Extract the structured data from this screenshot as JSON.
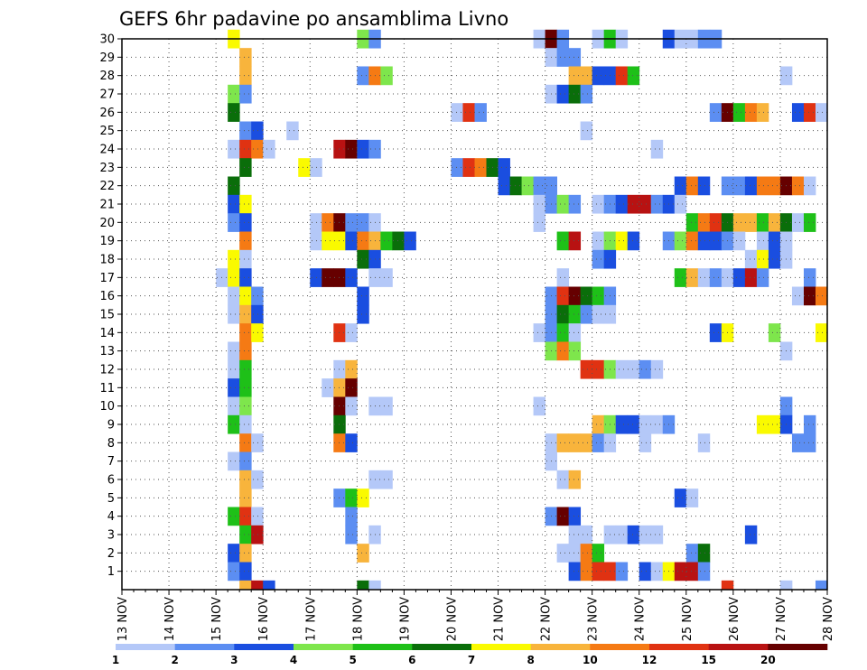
{
  "chart_data": {
    "type": "heatmap",
    "title": "GEFS 6hr padavine po ansamblima Livno",
    "ensemble_members": [
      "1",
      "2",
      "3",
      "4",
      "5",
      "6",
      "7",
      "8",
      "9",
      "10",
      "11",
      "12",
      "13",
      "14",
      "15",
      "16",
      "17",
      "18",
      "19",
      "20",
      "21",
      "22",
      "23",
      "24",
      "25",
      "26",
      "27",
      "28",
      "29",
      "30"
    ],
    "x_ticks": [
      "13 NOV",
      "14 NOV",
      "15 NOV",
      "16 NOV",
      "17 NOV",
      "18 NOV",
      "19 NOV",
      "20 NOV",
      "21 NOV",
      "22 NOV",
      "23 NOV",
      "24 NOV",
      "25 NOV",
      "26 NOV",
      "27 NOV",
      "28 NOV"
    ],
    "time_step_hours": 6,
    "legend": {
      "placement": "bottom",
      "colors": [
        "#b4c8f8",
        "#5c8ef2",
        "#1a4ee0",
        "#7ee64c",
        "#1ec018",
        "#0a6e0a",
        "#fafa00",
        "#f8b43c",
        "#f57a14",
        "#e03212",
        "#b81212",
        "#660000"
      ],
      "labels": [
        "1",
        "2",
        "3",
        "4",
        "5",
        "6",
        "7",
        "8",
        "10",
        "12",
        "15",
        "20"
      ]
    },
    "note_units": "level index 1-12 refers to legend color class",
    "cells": [
      [
        30,
        15.25,
        7
      ],
      [
        30,
        18.0,
        4
      ],
      [
        30,
        18.25,
        2
      ],
      [
        30,
        21.75,
        1
      ],
      [
        30,
        22.0,
        12
      ],
      [
        30,
        22.25,
        2
      ],
      [
        30,
        23.0,
        1
      ],
      [
        30,
        23.25,
        5
      ],
      [
        30,
        23.5,
        1
      ],
      [
        30,
        24.5,
        3
      ],
      [
        30,
        24.75,
        1
      ],
      [
        30,
        25.0,
        1
      ],
      [
        30,
        25.25,
        2
      ],
      [
        30,
        25.5,
        2
      ],
      [
        29,
        15.5,
        8
      ],
      [
        29,
        22.0,
        1
      ],
      [
        29,
        22.25,
        2
      ],
      [
        29,
        22.5,
        2
      ],
      [
        28,
        15.5,
        8
      ],
      [
        28,
        18.0,
        2
      ],
      [
        28,
        18.25,
        9
      ],
      [
        28,
        18.5,
        4
      ],
      [
        28,
        22.5,
        8
      ],
      [
        28,
        22.75,
        8
      ],
      [
        28,
        23.0,
        3
      ],
      [
        28,
        23.25,
        3
      ],
      [
        28,
        23.5,
        10
      ],
      [
        28,
        23.75,
        5
      ],
      [
        28,
        27.0,
        1
      ],
      [
        27,
        15.25,
        4
      ],
      [
        27,
        15.5,
        2
      ],
      [
        27,
        22.0,
        1
      ],
      [
        27,
        22.25,
        3
      ],
      [
        27,
        22.5,
        6
      ],
      [
        27,
        22.75,
        2
      ],
      [
        26,
        15.25,
        6
      ],
      [
        26,
        20.0,
        1
      ],
      [
        26,
        20.25,
        10
      ],
      [
        26,
        20.5,
        2
      ],
      [
        26,
        25.5,
        2
      ],
      [
        26,
        25.75,
        12
      ],
      [
        26,
        26.0,
        5
      ],
      [
        26,
        26.25,
        9
      ],
      [
        26,
        26.5,
        8
      ],
      [
        26,
        27.25,
        3
      ],
      [
        26,
        27.5,
        10
      ],
      [
        26,
        27.75,
        1
      ],
      [
        25,
        15.5,
        2
      ],
      [
        25,
        15.75,
        3
      ],
      [
        25,
        16.5,
        1
      ],
      [
        25,
        22.75,
        1
      ],
      [
        24,
        15.25,
        1
      ],
      [
        24,
        15.5,
        10
      ],
      [
        24,
        15.75,
        9
      ],
      [
        24,
        16.0,
        1
      ],
      [
        24,
        17.5,
        11
      ],
      [
        24,
        17.75,
        12
      ],
      [
        24,
        18.0,
        3
      ],
      [
        24,
        18.25,
        2
      ],
      [
        24,
        24.25,
        1
      ],
      [
        23,
        15.5,
        6
      ],
      [
        23,
        16.75,
        7
      ],
      [
        23,
        17.0,
        1
      ],
      [
        23,
        20.0,
        2
      ],
      [
        23,
        20.25,
        10
      ],
      [
        23,
        20.5,
        9
      ],
      [
        23,
        20.75,
        6
      ],
      [
        23,
        21.0,
        3
      ],
      [
        22,
        15.25,
        6
      ],
      [
        22,
        21.0,
        3
      ],
      [
        22,
        21.25,
        6
      ],
      [
        22,
        21.5,
        4
      ],
      [
        22,
        21.75,
        2
      ],
      [
        22,
        22.0,
        2
      ],
      [
        22,
        24.75,
        3
      ],
      [
        22,
        25.0,
        9
      ],
      [
        22,
        25.25,
        3
      ],
      [
        22,
        25.75,
        2
      ],
      [
        22,
        26.0,
        2
      ],
      [
        22,
        26.25,
        3
      ],
      [
        22,
        26.5,
        9
      ],
      [
        22,
        26.75,
        9
      ],
      [
        22,
        27.0,
        12
      ],
      [
        22,
        27.25,
        9
      ],
      [
        22,
        27.5,
        1
      ],
      [
        21,
        15.25,
        3
      ],
      [
        21,
        15.5,
        7
      ],
      [
        21,
        21.75,
        1
      ],
      [
        21,
        22.0,
        2
      ],
      [
        21,
        22.25,
        4
      ],
      [
        21,
        22.5,
        2
      ],
      [
        21,
        23.0,
        1
      ],
      [
        21,
        23.25,
        2
      ],
      [
        21,
        23.5,
        3
      ],
      [
        21,
        23.75,
        11
      ],
      [
        21,
        24.0,
        11
      ],
      [
        21,
        24.25,
        2
      ],
      [
        21,
        24.5,
        3
      ],
      [
        21,
        24.75,
        1
      ],
      [
        20,
        15.25,
        2
      ],
      [
        20,
        15.5,
        3
      ],
      [
        20,
        17.0,
        1
      ],
      [
        20,
        17.25,
        9
      ],
      [
        20,
        17.5,
        12
      ],
      [
        20,
        17.75,
        2
      ],
      [
        20,
        18.0,
        2
      ],
      [
        20,
        18.25,
        1
      ],
      [
        20,
        21.75,
        1
      ],
      [
        20,
        25.0,
        5
      ],
      [
        20,
        25.25,
        9
      ],
      [
        20,
        25.5,
        10
      ],
      [
        20,
        25.75,
        6
      ],
      [
        20,
        26.0,
        8
      ],
      [
        20,
        26.25,
        8
      ],
      [
        20,
        26.5,
        5
      ],
      [
        20,
        26.75,
        8
      ],
      [
        20,
        27.0,
        6
      ],
      [
        20,
        27.25,
        1
      ],
      [
        20,
        27.5,
        5
      ],
      [
        19,
        15.5,
        9
      ],
      [
        19,
        17.0,
        1
      ],
      [
        19,
        17.25,
        7
      ],
      [
        19,
        17.5,
        7
      ],
      [
        19,
        17.75,
        3
      ],
      [
        19,
        18.0,
        9
      ],
      [
        19,
        18.25,
        8
      ],
      [
        19,
        18.5,
        5
      ],
      [
        19,
        18.75,
        6
      ],
      [
        19,
        19.0,
        3
      ],
      [
        19,
        22.25,
        5
      ],
      [
        19,
        22.5,
        11
      ],
      [
        19,
        23.0,
        1
      ],
      [
        19,
        23.25,
        4
      ],
      [
        19,
        23.5,
        7
      ],
      [
        19,
        23.75,
        3
      ],
      [
        19,
        24.5,
        2
      ],
      [
        19,
        24.75,
        4
      ],
      [
        19,
        25.0,
        9
      ],
      [
        19,
        25.25,
        3
      ],
      [
        19,
        25.5,
        3
      ],
      [
        19,
        25.75,
        2
      ],
      [
        19,
        26.0,
        1
      ],
      [
        19,
        26.5,
        1
      ],
      [
        19,
        26.75,
        3
      ],
      [
        19,
        27.0,
        1
      ],
      [
        18,
        15.25,
        7
      ],
      [
        18,
        15.5,
        1
      ],
      [
        18,
        18.0,
        6
      ],
      [
        18,
        18.25,
        3
      ],
      [
        18,
        23.0,
        2
      ],
      [
        18,
        23.25,
        3
      ],
      [
        18,
        26.25,
        1
      ],
      [
        18,
        26.5,
        7
      ],
      [
        18,
        26.75,
        3
      ],
      [
        18,
        27.0,
        1
      ],
      [
        17,
        15.0,
        1
      ],
      [
        17,
        15.25,
        7
      ],
      [
        17,
        15.5,
        3
      ],
      [
        17,
        17.0,
        3
      ],
      [
        17,
        17.25,
        12
      ],
      [
        17,
        17.5,
        12
      ],
      [
        17,
        17.75,
        3
      ],
      [
        17,
        18.25,
        1
      ],
      [
        17,
        18.5,
        1
      ],
      [
        17,
        22.25,
        1
      ],
      [
        17,
        24.75,
        5
      ],
      [
        17,
        25.0,
        8
      ],
      [
        17,
        25.25,
        1
      ],
      [
        17,
        25.5,
        2
      ],
      [
        17,
        25.75,
        1
      ],
      [
        17,
        26.0,
        3
      ],
      [
        17,
        26.25,
        11
      ],
      [
        17,
        26.5,
        2
      ],
      [
        17,
        27.5,
        2
      ],
      [
        16,
        15.25,
        1
      ],
      [
        16,
        15.5,
        7
      ],
      [
        16,
        15.75,
        2
      ],
      [
        16,
        18.0,
        3
      ],
      [
        16,
        22.0,
        2
      ],
      [
        16,
        22.25,
        10
      ],
      [
        16,
        22.5,
        12
      ],
      [
        16,
        22.75,
        6
      ],
      [
        16,
        23.0,
        5
      ],
      [
        16,
        23.25,
        2
      ],
      [
        16,
        27.25,
        1
      ],
      [
        16,
        27.5,
        12
      ],
      [
        16,
        27.75,
        9
      ],
      [
        15,
        15.25,
        1
      ],
      [
        15,
        15.5,
        8
      ],
      [
        15,
        15.75,
        3
      ],
      [
        15,
        18.0,
        3
      ],
      [
        15,
        22.0,
        2
      ],
      [
        15,
        22.25,
        6
      ],
      [
        15,
        22.5,
        5
      ],
      [
        15,
        22.75,
        2
      ],
      [
        15,
        23.0,
        1
      ],
      [
        15,
        23.25,
        1
      ],
      [
        14,
        15.5,
        9
      ],
      [
        14,
        15.75,
        7
      ],
      [
        14,
        17.5,
        10
      ],
      [
        14,
        17.75,
        1
      ],
      [
        14,
        21.75,
        1
      ],
      [
        14,
        22.0,
        2
      ],
      [
        14,
        22.25,
        5
      ],
      [
        14,
        22.5,
        1
      ],
      [
        14,
        25.5,
        3
      ],
      [
        14,
        25.75,
        7
      ],
      [
        14,
        26.75,
        4
      ],
      [
        14,
        27.75,
        7
      ],
      [
        13,
        15.25,
        1
      ],
      [
        13,
        15.5,
        9
      ],
      [
        13,
        22.0,
        4
      ],
      [
        13,
        22.25,
        9
      ],
      [
        13,
        22.5,
        4
      ],
      [
        13,
        27.0,
        1
      ],
      [
        12,
        15.25,
        1
      ],
      [
        12,
        15.5,
        5
      ],
      [
        12,
        17.5,
        1
      ],
      [
        12,
        17.75,
        8
      ],
      [
        12,
        22.75,
        10
      ],
      [
        12,
        23.0,
        10
      ],
      [
        12,
        23.25,
        4
      ],
      [
        12,
        23.5,
        1
      ],
      [
        12,
        23.75,
        1
      ],
      [
        12,
        24.0,
        2
      ],
      [
        12,
        24.25,
        1
      ],
      [
        11,
        15.25,
        3
      ],
      [
        11,
        15.5,
        5
      ],
      [
        11,
        17.25,
        1
      ],
      [
        11,
        17.5,
        8
      ],
      [
        11,
        17.75,
        12
      ],
      [
        10,
        15.25,
        1
      ],
      [
        10,
        15.5,
        4
      ],
      [
        10,
        17.5,
        12
      ],
      [
        10,
        17.75,
        1
      ],
      [
        10,
        18.25,
        1
      ],
      [
        10,
        18.5,
        1
      ],
      [
        10,
        21.75,
        1
      ],
      [
        10,
        27.0,
        2
      ],
      [
        9,
        15.25,
        5
      ],
      [
        9,
        15.5,
        1
      ],
      [
        9,
        17.5,
        6
      ],
      [
        9,
        23.0,
        8
      ],
      [
        9,
        23.25,
        4
      ],
      [
        9,
        23.5,
        3
      ],
      [
        9,
        23.75,
        3
      ],
      [
        9,
        24.0,
        1
      ],
      [
        9,
        24.25,
        1
      ],
      [
        9,
        24.5,
        2
      ],
      [
        9,
        26.5,
        7
      ],
      [
        9,
        26.75,
        7
      ],
      [
        9,
        27.0,
        3
      ],
      [
        9,
        27.5,
        2
      ],
      [
        8,
        15.5,
        9
      ],
      [
        8,
        15.75,
        1
      ],
      [
        8,
        17.5,
        9
      ],
      [
        8,
        17.75,
        3
      ],
      [
        8,
        22.0,
        1
      ],
      [
        8,
        22.25,
        8
      ],
      [
        8,
        22.5,
        8
      ],
      [
        8,
        22.75,
        8
      ],
      [
        8,
        23.0,
        2
      ],
      [
        8,
        23.25,
        1
      ],
      [
        8,
        24.0,
        1
      ],
      [
        8,
        25.25,
        1
      ],
      [
        8,
        27.25,
        2
      ],
      [
        8,
        27.5,
        2
      ],
      [
        7,
        15.25,
        1
      ],
      [
        7,
        15.5,
        2
      ],
      [
        7,
        22.0,
        1
      ],
      [
        6,
        15.5,
        8
      ],
      [
        6,
        15.75,
        1
      ],
      [
        6,
        18.25,
        1
      ],
      [
        6,
        18.5,
        1
      ],
      [
        6,
        22.25,
        1
      ],
      [
        6,
        22.5,
        8
      ],
      [
        5,
        15.5,
        8
      ],
      [
        5,
        17.5,
        2
      ],
      [
        5,
        17.75,
        5
      ],
      [
        5,
        18.0,
        7
      ],
      [
        5,
        24.75,
        3
      ],
      [
        5,
        25.0,
        1
      ],
      [
        4,
        15.25,
        5
      ],
      [
        4,
        15.5,
        10
      ],
      [
        4,
        15.75,
        1
      ],
      [
        4,
        17.75,
        2
      ],
      [
        4,
        22.0,
        2
      ],
      [
        4,
        22.25,
        12
      ],
      [
        4,
        22.5,
        3
      ],
      [
        3,
        15.5,
        5
      ],
      [
        3,
        15.75,
        11
      ],
      [
        3,
        17.75,
        2
      ],
      [
        3,
        18.25,
        1
      ],
      [
        3,
        22.5,
        1
      ],
      [
        3,
        22.75,
        1
      ],
      [
        3,
        23.25,
        1
      ],
      [
        3,
        23.5,
        1
      ],
      [
        3,
        23.75,
        3
      ],
      [
        3,
        24.0,
        1
      ],
      [
        3,
        24.25,
        1
      ],
      [
        3,
        26.25,
        3
      ],
      [
        2,
        15.25,
        3
      ],
      [
        2,
        15.5,
        8
      ],
      [
        2,
        18.0,
        8
      ],
      [
        2,
        22.25,
        1
      ],
      [
        2,
        22.5,
        1
      ],
      [
        2,
        22.75,
        9
      ],
      [
        2,
        23.0,
        5
      ],
      [
        2,
        25.0,
        2
      ],
      [
        2,
        25.25,
        6
      ],
      [
        1,
        15.25,
        2
      ],
      [
        1,
        15.5,
        3
      ],
      [
        1,
        22.5,
        3
      ],
      [
        1,
        22.75,
        9
      ],
      [
        1,
        23.0,
        10
      ],
      [
        1,
        23.25,
        10
      ],
      [
        1,
        23.5,
        2
      ],
      [
        1,
        24.0,
        3
      ],
      [
        1,
        24.25,
        1
      ],
      [
        1,
        24.5,
        7
      ],
      [
        1,
        24.75,
        11
      ],
      [
        1,
        25.0,
        11
      ],
      [
        1,
        25.25,
        2
      ],
      [
        0,
        15.5,
        8
      ],
      [
        0,
        15.75,
        11
      ],
      [
        0,
        16.0,
        3
      ],
      [
        0,
        18.0,
        6
      ],
      [
        0,
        18.25,
        1
      ],
      [
        0,
        25.75,
        10
      ],
      [
        0,
        27.0,
        1
      ],
      [
        0,
        27.75,
        2
      ]
    ]
  }
}
